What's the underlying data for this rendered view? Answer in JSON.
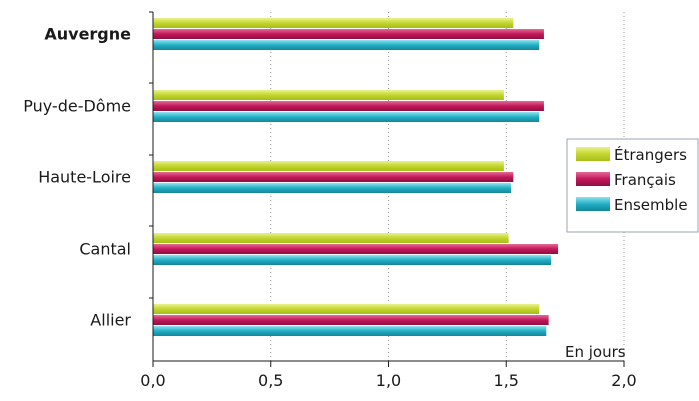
{
  "chart_data": {
    "type": "bar",
    "orientation": "horizontal",
    "categories": [
      "Auvergne",
      "Puy-de-Dôme",
      "Haute-Loire",
      "Cantal",
      "Allier"
    ],
    "emphasized_category": "Auvergne",
    "series": [
      {
        "name": "Étrangers",
        "values": [
          1.53,
          1.49,
          1.49,
          1.51,
          1.64
        ]
      },
      {
        "name": "Français",
        "values": [
          1.66,
          1.66,
          1.53,
          1.72,
          1.68
        ]
      },
      {
        "name": "Ensemble",
        "values": [
          1.64,
          1.64,
          1.52,
          1.69,
          1.67
        ]
      }
    ],
    "xlim": [
      0,
      2.0
    ],
    "xticks": [
      "0,0",
      "0,5",
      "1,0",
      "1,5",
      "2,0"
    ],
    "unit_label": "En jours",
    "grid": "vertical-dotted",
    "legend_position": "right",
    "colors": {
      "Étrangers": "#c3d62e",
      "Français": "#c2185b",
      "Ensemble": "#22aec4"
    }
  }
}
